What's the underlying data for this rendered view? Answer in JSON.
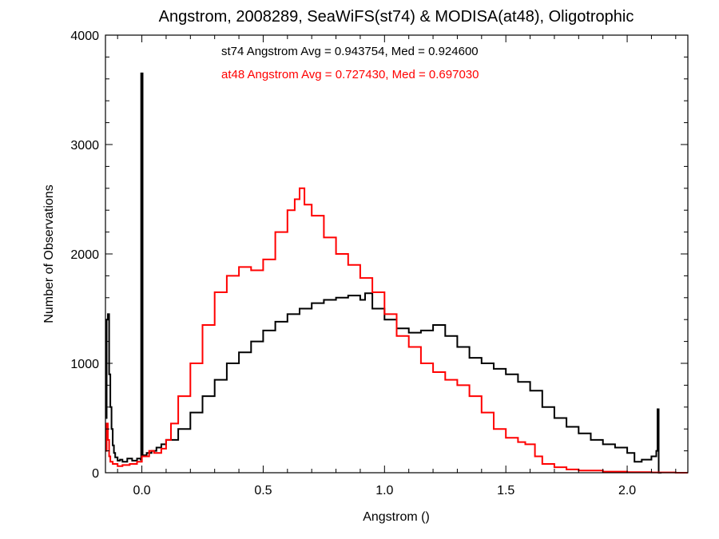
{
  "chart_data": {
    "type": "line",
    "title": "Angstrom, 2008289, SeaWiFS(st74) & MODISA(at48), Oligotrophic",
    "xlabel": "Angstrom ()",
    "ylabel": "Number of Observations",
    "xlim": [
      -0.15,
      2.25
    ],
    "ylim": [
      0,
      4000
    ],
    "xticks": [
      0.0,
      0.5,
      1.0,
      1.5,
      2.0
    ],
    "xtick_labels": [
      "0.0",
      "0.5",
      "1.0",
      "1.5",
      "2.0"
    ],
    "yticks": [
      0,
      1000,
      2000,
      3000,
      4000
    ],
    "ytick_labels": [
      "0",
      "1000",
      "2000",
      "3000",
      "4000"
    ],
    "grid": false,
    "step": true,
    "annotations": [
      {
        "text": "st74 Angstrom Avg = 0.943754, Med = 0.924600",
        "color": "#000000"
      },
      {
        "text": "at48 Angstrom Avg = 0.727430, Med = 0.697030",
        "color": "#ff0000"
      }
    ],
    "series": [
      {
        "color": "#000000",
        "x": [
          -0.15,
          -0.145,
          -0.14,
          -0.135,
          -0.13,
          -0.125,
          -0.12,
          -0.115,
          -0.11,
          -0.1,
          -0.09,
          -0.08,
          -0.06,
          -0.04,
          -0.02,
          -0.005,
          -0.003,
          0.003,
          0.005,
          0.02,
          0.04,
          0.06,
          0.08,
          0.1,
          0.15,
          0.2,
          0.25,
          0.3,
          0.35,
          0.4,
          0.45,
          0.5,
          0.55,
          0.6,
          0.65,
          0.7,
          0.75,
          0.8,
          0.85,
          0.9,
          0.92,
          0.95,
          1.0,
          1.05,
          1.1,
          1.15,
          1.2,
          1.25,
          1.3,
          1.35,
          1.4,
          1.45,
          1.5,
          1.55,
          1.6,
          1.65,
          1.7,
          1.75,
          1.8,
          1.85,
          1.9,
          1.95,
          2.0,
          2.03,
          2.06,
          2.1,
          2.12,
          2.125,
          2.13,
          2.135
        ],
        "values": [
          500,
          1400,
          1450,
          900,
          600,
          400,
          250,
          180,
          140,
          110,
          120,
          100,
          130,
          110,
          130,
          120,
          3650,
          150,
          160,
          180,
          200,
          230,
          260,
          300,
          400,
          550,
          700,
          850,
          1000,
          1100,
          1200,
          1300,
          1380,
          1450,
          1500,
          1550,
          1580,
          1600,
          1620,
          1580,
          1640,
          1500,
          1400,
          1320,
          1280,
          1300,
          1350,
          1250,
          1150,
          1050,
          1000,
          950,
          900,
          830,
          750,
          600,
          500,
          420,
          360,
          300,
          260,
          230,
          180,
          100,
          120,
          150,
          200,
          580,
          0,
          0
        ]
      },
      {
        "color": "#ff0000",
        "x": [
          -0.15,
          -0.145,
          -0.14,
          -0.135,
          -0.13,
          -0.12,
          -0.1,
          -0.08,
          -0.05,
          -0.02,
          0.0,
          0.03,
          0.05,
          0.08,
          0.1,
          0.12,
          0.15,
          0.2,
          0.25,
          0.3,
          0.35,
          0.4,
          0.45,
          0.5,
          0.55,
          0.6,
          0.63,
          0.65,
          0.67,
          0.7,
          0.75,
          0.8,
          0.85,
          0.9,
          0.95,
          1.0,
          1.05,
          1.1,
          1.15,
          1.2,
          1.25,
          1.3,
          1.35,
          1.4,
          1.45,
          1.5,
          1.55,
          1.58,
          1.62,
          1.65,
          1.7,
          1.75,
          1.8,
          1.9,
          2.0,
          2.1,
          2.2,
          2.25
        ],
        "values": [
          200,
          450,
          300,
          150,
          100,
          80,
          60,
          70,
          80,
          100,
          150,
          200,
          180,
          220,
          300,
          450,
          700,
          1000,
          1350,
          1650,
          1800,
          1880,
          1850,
          1950,
          2200,
          2400,
          2500,
          2600,
          2450,
          2350,
          2150,
          2000,
          1900,
          1780,
          1650,
          1450,
          1250,
          1150,
          1000,
          920,
          850,
          800,
          700,
          550,
          400,
          320,
          280,
          260,
          150,
          80,
          50,
          30,
          20,
          10,
          5,
          3,
          0,
          0
        ]
      }
    ]
  }
}
